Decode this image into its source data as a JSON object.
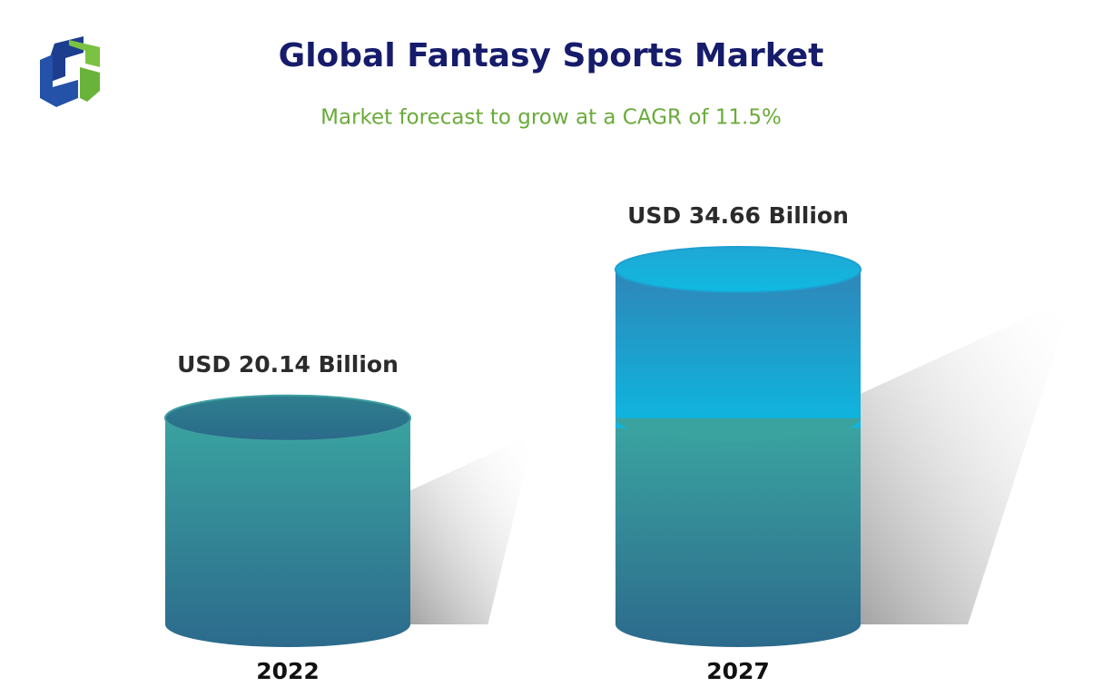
{
  "chart_data": {
    "type": "cylinder",
    "title": "Global Fantasy Sports Market",
    "subtitle": "Market forecast to grow at a CAGR of 11.5%",
    "categories": [
      "2022",
      "2027"
    ],
    "values": [
      20.14,
      34.66
    ],
    "value_labels": [
      "USD 20.14 Billion",
      "USD 34.66 Billion"
    ],
    "color": "#2f8f98"
  }
}
